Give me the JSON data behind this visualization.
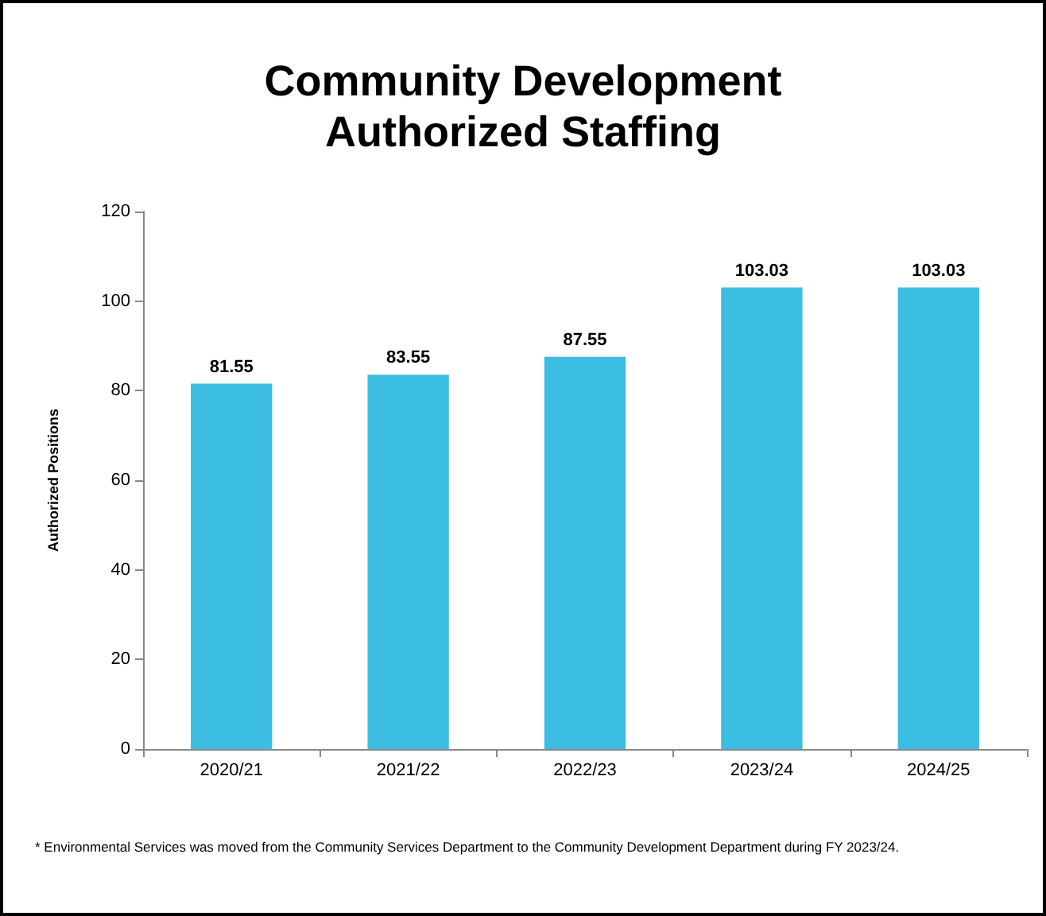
{
  "chart_data": {
    "type": "bar",
    "title": "Community Development\nAuthorized Staffing",
    "ylabel": "Authorized Positions",
    "categories": [
      "2020/21",
      "2021/22",
      "2022/23",
      "2023/24",
      "2024/25"
    ],
    "values": [
      81.55,
      83.55,
      87.55,
      103.03,
      103.03
    ],
    "color": "#3cbde2",
    "ylim": [
      0,
      120
    ],
    "yticks": [
      0,
      20,
      40,
      60,
      80,
      100,
      120
    ],
    "grid": false,
    "data_labels": true,
    "annotations": [
      "* Environmental Services was moved from the Community Services Department to the Community Development Department during FY 2023/24."
    ]
  }
}
